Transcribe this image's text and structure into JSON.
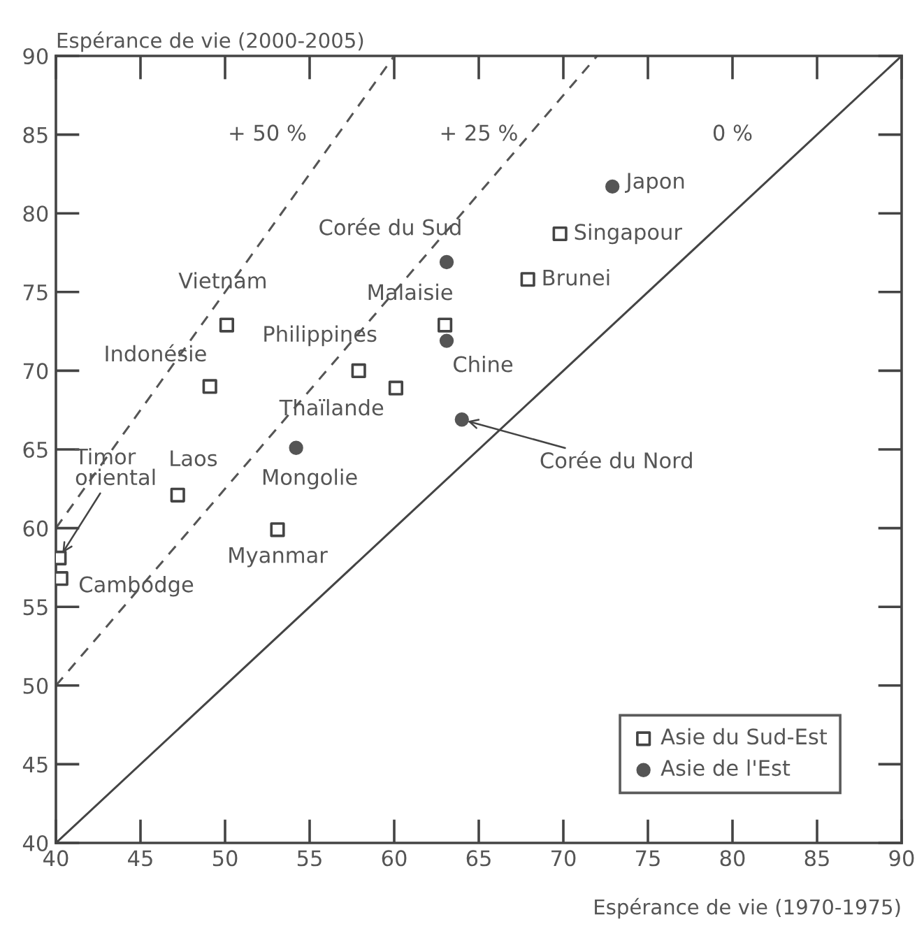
{
  "chart_data": {
    "type": "scatter",
    "xlabel": "Espérance de vie (1970-1975)",
    "ylabel": "Espérance de vie (2000-2005)",
    "xlim": [
      40,
      90
    ],
    "ylim": [
      40,
      90
    ],
    "xticks": [
      40,
      45,
      50,
      55,
      60,
      65,
      70,
      75,
      80,
      85,
      90
    ],
    "yticks": [
      40,
      45,
      50,
      55,
      60,
      65,
      70,
      75,
      80,
      85,
      90
    ],
    "grid": false,
    "legend": "bottom right",
    "series": [
      {
        "name": "Asie du Sud-Est",
        "color": "#444444",
        "marker": "square",
        "x": [
          50.1,
          49.1,
          57.9,
          60.1,
          63.0,
          69.8,
          67.9,
          47.2,
          53.1,
          40.2,
          40.3
        ],
        "values": [
          72.9,
          69.0,
          70.0,
          68.9,
          72.9,
          78.7,
          75.8,
          62.1,
          59.9,
          58.1,
          56.8
        ]
      },
      {
        "name": "Asie de l'Est",
        "color": "#555555",
        "marker": "circle",
        "x": [
          63.1,
          63.1,
          54.2,
          64.0,
          72.9
        ],
        "values": [
          76.9,
          71.9,
          65.1,
          66.9,
          81.7
        ]
      },
      {
        "type": "line",
        "color": "#555555",
        "line_style": "dashed",
        "marker": "none",
        "x": [
          40,
          60
        ],
        "values": [
          60,
          90
        ]
      },
      {
        "type": "line",
        "color": "#555555",
        "line_style": "dashed",
        "marker": "none",
        "x": [
          40,
          72
        ],
        "values": [
          50,
          90
        ]
      },
      {
        "type": "line",
        "color": "#444444",
        "line_style": "solid",
        "marker": "none",
        "x": [
          40,
          90
        ],
        "values": [
          40,
          90
        ]
      }
    ],
    "annotations": [
      "+ 50 %",
      "+ 25 %",
      "0 %",
      {
        "text": "Vietnam",
        "x": 50.1,
        "y": 72.9
      },
      {
        "text": "Indonésie",
        "x": 49.1,
        "y": 69.0
      },
      {
        "text": "Philippines",
        "x": 57.9,
        "y": 70.0
      },
      {
        "text": "Thaïlande",
        "x": 60.1,
        "y": 68.9
      },
      {
        "text": "Malaisie",
        "x": 63.0,
        "y": 72.9
      },
      {
        "text": "Singapour",
        "x": 69.8,
        "y": 78.7
      },
      {
        "text": "Brunei",
        "x": 67.9,
        "y": 75.8
      },
      {
        "text": "Laos",
        "x": 47.2,
        "y": 62.1
      },
      {
        "text": "Myanmar",
        "x": 53.1,
        "y": 59.9
      },
      {
        "text": "Timor\noriental",
        "x": 40.2,
        "y": 58.1
      },
      {
        "text": "Cambodge",
        "x": 40.3,
        "y": 56.8
      },
      {
        "text": "Corée du Sud",
        "x": 63.1,
        "y": 76.9
      },
      {
        "text": "Chine",
        "x": 63.1,
        "y": 71.9
      },
      {
        "text": "Mongolie",
        "x": 54.2,
        "y": 65.1
      },
      {
        "text": "Corée du Nord",
        "x": 64.0,
        "y": 66.9
      },
      {
        "text": "Japon",
        "x": 72.9,
        "y": 81.7
      }
    ]
  }
}
